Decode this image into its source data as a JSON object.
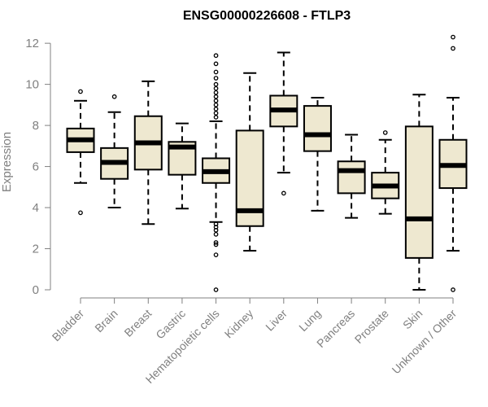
{
  "chart_data": {
    "type": "boxplot",
    "title": "ENSG00000226608 - FTLP3",
    "xlabel": "",
    "ylabel": "Expression",
    "ylim": [
      0,
      12.6
    ],
    "yticks": [
      0,
      2,
      4,
      6,
      8,
      10,
      12
    ],
    "categories": [
      "Bladder",
      "Brain",
      "Breast",
      "Gastric",
      "Hematopoietic cells",
      "Kidney",
      "Liver",
      "Lung",
      "Pancreas",
      "Prostate",
      "Skin",
      "Unknown / Other"
    ],
    "boxes": [
      {
        "category": "Bladder",
        "whisker_low": 5.2,
        "q1": 6.7,
        "median": 7.3,
        "q3": 7.85,
        "whisker_high": 9.2,
        "outliers": [
          9.65,
          3.75
        ]
      },
      {
        "category": "Brain",
        "whisker_low": 4.0,
        "q1": 5.4,
        "median": 6.2,
        "q3": 6.9,
        "whisker_high": 8.65,
        "outliers": [
          9.4
        ]
      },
      {
        "category": "Breast",
        "whisker_low": 3.2,
        "q1": 5.85,
        "median": 7.15,
        "q3": 8.45,
        "whisker_high": 10.15,
        "outliers": []
      },
      {
        "category": "Gastric",
        "whisker_low": 3.95,
        "q1": 5.6,
        "median": 6.95,
        "q3": 7.2,
        "whisker_high": 8.1,
        "outliers": []
      },
      {
        "category": "Hematopoietic cells",
        "whisker_low": 3.3,
        "q1": 5.2,
        "median": 5.75,
        "q3": 6.4,
        "whisker_high": 8.2,
        "outliers": [
          11.4,
          11.0,
          10.6,
          10.3,
          10.0,
          9.8,
          9.6,
          9.4,
          9.2,
          9.0,
          8.8,
          8.6,
          8.4,
          3.2,
          3.05,
          2.9,
          2.7,
          2.3,
          2.2,
          1.7,
          0.0
        ]
      },
      {
        "category": "Kidney",
        "whisker_low": 1.9,
        "q1": 3.1,
        "median": 3.85,
        "q3": 7.75,
        "whisker_high": 10.55,
        "outliers": []
      },
      {
        "category": "Liver",
        "whisker_low": 5.7,
        "q1": 7.95,
        "median": 8.75,
        "q3": 9.45,
        "whisker_high": 11.55,
        "outliers": [
          4.7
        ]
      },
      {
        "category": "Lung",
        "whisker_low": 3.85,
        "q1": 6.75,
        "median": 7.55,
        "q3": 8.95,
        "whisker_high": 9.35,
        "outliers": []
      },
      {
        "category": "Pancreas",
        "whisker_low": 3.5,
        "q1": 4.7,
        "median": 5.8,
        "q3": 6.25,
        "whisker_high": 7.55,
        "outliers": []
      },
      {
        "category": "Prostate",
        "whisker_low": 3.7,
        "q1": 4.45,
        "median": 5.05,
        "q3": 5.7,
        "whisker_high": 7.3,
        "outliers": [
          7.65
        ]
      },
      {
        "category": "Skin",
        "whisker_low": 0.0,
        "q1": 1.55,
        "median": 3.45,
        "q3": 7.95,
        "whisker_high": 9.5,
        "outliers": []
      },
      {
        "category": "Unknown / Other",
        "whisker_low": 1.9,
        "q1": 4.95,
        "median": 6.05,
        "q3": 7.3,
        "whisker_high": 9.35,
        "outliers": [
          12.3,
          11.75,
          0.0
        ]
      }
    ],
    "box_fill": "#EEE8D0",
    "line_color": "#000000",
    "axis_color": "#808080",
    "grid": false
  }
}
